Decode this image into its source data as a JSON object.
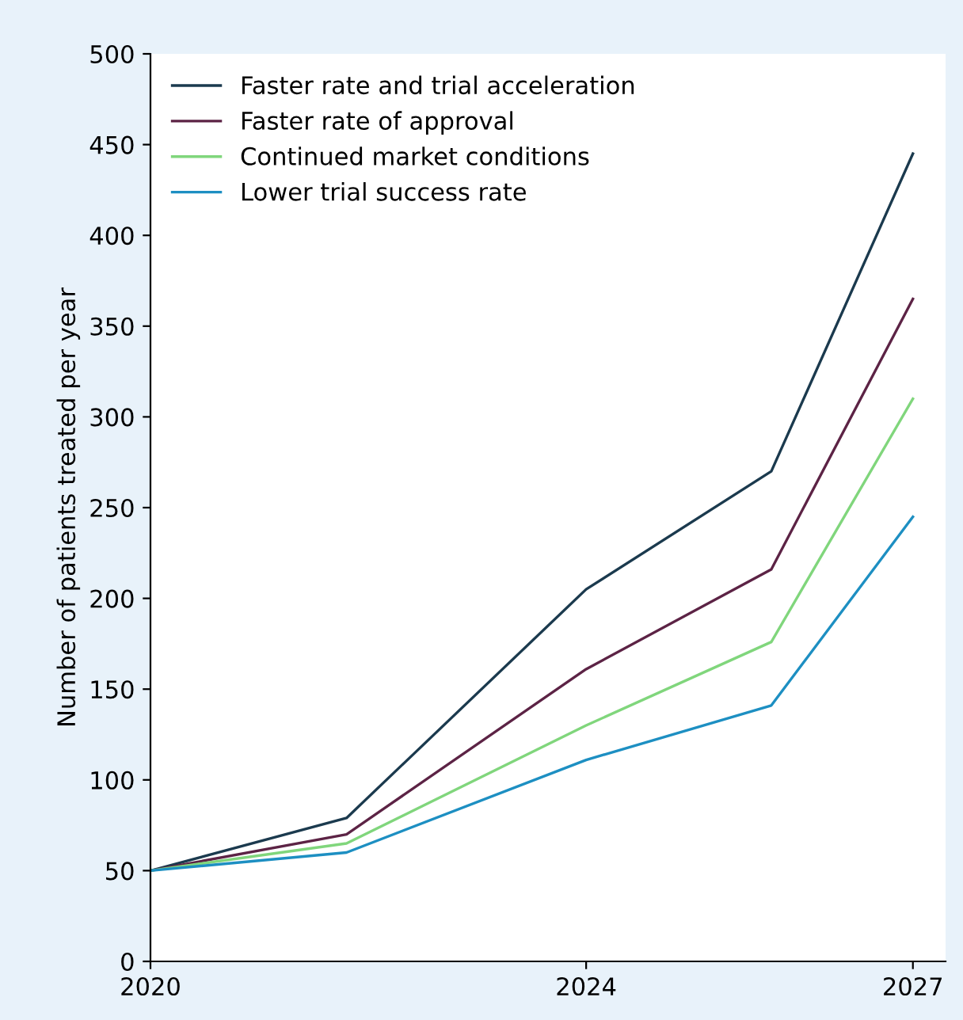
{
  "chart_data": {
    "type": "line",
    "ylabel": "Number of patients treated per year",
    "x": [
      2020,
      2021.8,
      2024,
      2025.7,
      2027
    ],
    "series": [
      {
        "name": "Faster rate and trial acceleration",
        "color": "#1b3a4e",
        "values": [
          50,
          79,
          205,
          270,
          445
        ]
      },
      {
        "name": "Faster rate of approval",
        "color": "#5c2345",
        "values": [
          50,
          70,
          161,
          216,
          365
        ]
      },
      {
        "name": "Continued market conditions",
        "color": "#80d67c",
        "values": [
          50,
          65,
          130,
          176,
          310
        ]
      },
      {
        "name": "Lower trial success rate",
        "color": "#1d8fc2",
        "values": [
          50,
          60,
          111,
          141,
          245
        ]
      }
    ],
    "xlim": [
      2020,
      2027.3
    ],
    "xticks": [
      2020,
      2024,
      2027
    ],
    "ylim": [
      0,
      500
    ],
    "yticks": [
      0,
      50,
      100,
      150,
      200,
      250,
      300,
      350,
      400,
      450,
      500
    ],
    "grid": false,
    "legend": "top left",
    "marker": "none",
    "line_style": "solid"
  }
}
